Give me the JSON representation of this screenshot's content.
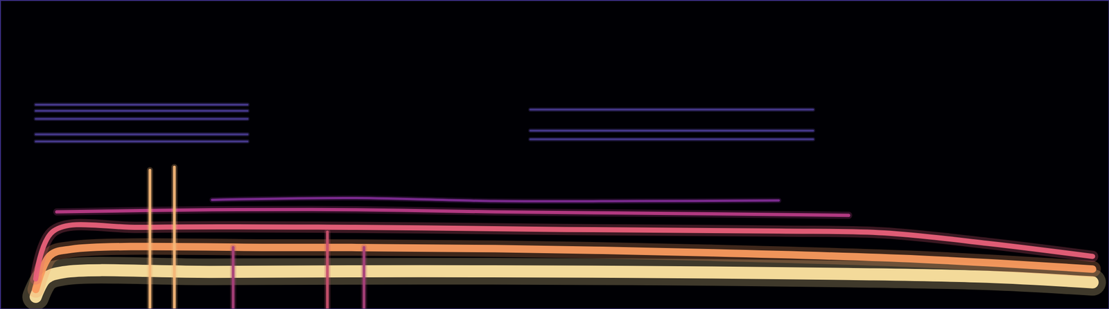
{
  "chart_data": {
    "type": "line",
    "xlim": [
      0,
      100
    ],
    "ylim": [
      0,
      100
    ],
    "tick_labels": false,
    "series": [
      {
        "color": "#fde3a0",
        "x": [
          3.2,
          4.1,
          5.7,
          19,
          38,
          57,
          76.5,
          89,
          98.5
        ],
        "values": [
          4,
          10,
          12,
          12.1,
          12.3,
          12.1,
          11.4,
          10.5,
          8.7
        ]
      },
      {
        "color": "#f99a5e",
        "x": [
          3.2,
          4.5,
          6.4,
          25.5,
          44.6,
          63.8,
          82.9,
          98.5
        ],
        "values": [
          6.4,
          17.4,
          19.4,
          20,
          19.6,
          18.3,
          16.2,
          13
        ]
      },
      {
        "color": "#e8607a",
        "x": [
          3.2,
          4.8,
          12.8,
          31.9,
          51,
          70.2,
          79.7,
          89.3,
          98.5
        ],
        "values": [
          9.8,
          25.3,
          26.5,
          26.5,
          25.8,
          25.3,
          24.7,
          21.2,
          17.1
        ]
      },
      {
        "color": "#b83c86",
        "x": [
          5.1,
          19.1,
          31.9,
          44.6,
          60.6,
          76.5
        ],
        "values": [
          31.5,
          32.2,
          32.2,
          31.5,
          31,
          30.4
        ]
      },
      {
        "color": "#7e2c92",
        "x": [
          19.1,
          31.9,
          44.6,
          57.4,
          70.2
        ],
        "values": [
          35.4,
          36,
          35,
          35,
          35.2
        ]
      },
      {
        "color": "#f4b678",
        "x": [
          13.5,
          13.5
        ],
        "values": [
          0,
          45
        ]
      },
      {
        "color": "#f4b678",
        "x": [
          15.7,
          15.7
        ],
        "values": [
          0,
          46
        ]
      },
      {
        "color": "#c8506e",
        "x": [
          29.5,
          29.5
        ],
        "values": [
          0,
          25
        ]
      },
      {
        "color": "#a8407a",
        "x": [
          21,
          21
        ],
        "values": [
          0,
          20
        ]
      },
      {
        "color": "#a8407a",
        "x": [
          32.8,
          32.8
        ],
        "values": [
          0,
          20
        ]
      },
      {
        "color": "#5a48b0",
        "x": [
          3.2,
          22.3
        ],
        "values": [
          66.2,
          66.2
        ]
      },
      {
        "color": "#5a48b0",
        "x": [
          3.2,
          22.3
        ],
        "values": [
          64.2,
          64.2
        ]
      },
      {
        "color": "#5a48b0",
        "x": [
          3.2,
          22.3
        ],
        "values": [
          61.6,
          61.6
        ]
      },
      {
        "color": "#5a48b0",
        "x": [
          3.2,
          22.3
        ],
        "values": [
          56.6,
          56.6
        ]
      },
      {
        "color": "#5a48b0",
        "x": [
          3.2,
          22.3
        ],
        "values": [
          54.3,
          54.3
        ]
      },
      {
        "color": "#5a48b0",
        "x": [
          47.8,
          73.3
        ],
        "values": [
          64.6,
          64.6
        ]
      },
      {
        "color": "#5a48b0",
        "x": [
          47.8,
          73.3
        ],
        "values": [
          57.8,
          57.8
        ]
      },
      {
        "color": "#5a48b0",
        "x": [
          47.8,
          73.3
        ],
        "values": [
          55,
          55
        ]
      }
    ]
  }
}
